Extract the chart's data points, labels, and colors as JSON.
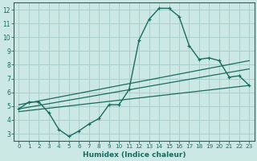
{
  "xlabel": "Humidex (Indice chaleur)",
  "background_color": "#cce8e5",
  "grid_color": "#aacfcc",
  "line_color": "#1a6b5e",
  "xlim": [
    -0.5,
    23.5
  ],
  "ylim": [
    2.5,
    12.5
  ],
  "xticks": [
    0,
    1,
    2,
    3,
    4,
    5,
    6,
    7,
    8,
    9,
    10,
    11,
    12,
    13,
    14,
    15,
    16,
    17,
    18,
    19,
    20,
    21,
    22,
    23
  ],
  "yticks": [
    3,
    4,
    5,
    6,
    7,
    8,
    9,
    10,
    11,
    12
  ],
  "main_x": [
    0,
    1,
    2,
    3,
    4,
    5,
    6,
    7,
    8,
    9,
    10,
    11,
    12,
    13,
    14,
    15,
    16,
    17,
    18,
    19,
    20,
    21,
    22,
    23
  ],
  "main_y": [
    4.8,
    5.3,
    5.3,
    4.5,
    3.3,
    2.8,
    3.2,
    3.7,
    4.1,
    5.1,
    5.1,
    6.2,
    9.8,
    11.3,
    12.1,
    12.1,
    11.5,
    9.4,
    8.4,
    8.5,
    8.3,
    7.1,
    7.2,
    6.5
  ],
  "line2_x": [
    0,
    23
  ],
  "line2_y": [
    5.1,
    8.3
  ],
  "line3_x": [
    0,
    23
  ],
  "line3_y": [
    4.8,
    7.7
  ],
  "line4_x": [
    0,
    23
  ],
  "line4_y": [
    4.6,
    6.5
  ]
}
